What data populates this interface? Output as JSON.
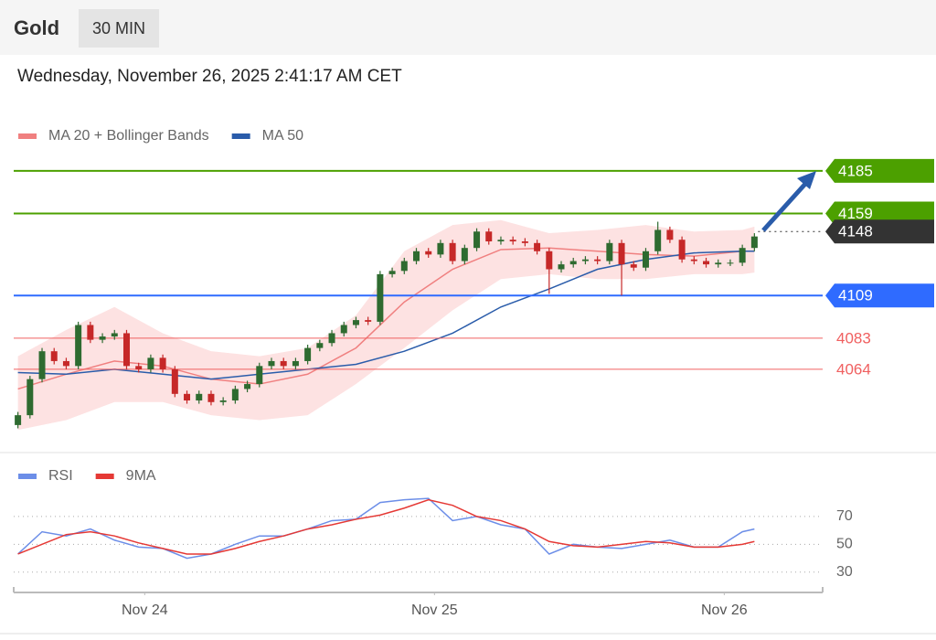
{
  "header": {
    "title": "Gold",
    "timeframe": "30 MIN",
    "timestamp": "Wednesday, November 26, 2025 2:41:17 AM CET"
  },
  "chart_data": [
    {
      "type": "candlestick",
      "x": [
        0,
        2,
        4,
        6,
        8,
        10,
        12,
        14,
        16,
        18,
        20,
        22,
        24,
        26,
        28,
        30,
        32,
        34,
        36,
        38,
        40,
        42,
        44,
        46,
        48,
        50,
        52,
        54,
        56,
        58,
        60,
        62,
        64,
        66,
        68,
        70,
        72,
        74,
        76,
        78,
        80,
        82,
        84,
        86,
        88,
        90,
        92,
        94,
        96,
        98,
        100,
        102,
        104,
        106,
        108,
        110,
        112,
        114,
        116,
        118,
        120,
        122
      ],
      "open": [
        4030,
        4036,
        4058,
        4075,
        4069,
        4066,
        4091,
        4082,
        4084,
        4086,
        4066,
        4064,
        4071,
        4064,
        4049,
        4045,
        4049,
        4044,
        4045,
        4052,
        4055,
        4066,
        4069,
        4066,
        4069,
        4077,
        4080,
        4086,
        4091,
        4094,
        4093,
        4122,
        4124,
        4130,
        4136,
        4134,
        4141,
        4130,
        4138,
        4148,
        4142,
        4143,
        4142,
        4141,
        4136,
        4125,
        4128,
        4130,
        4131,
        4130,
        4141,
        4128,
        4126,
        4136,
        4149,
        4143,
        4131,
        4130,
        4128,
        4129,
        4129,
        4138
      ],
      "high": [
        4038,
        4060,
        4077,
        4077,
        4071,
        4093,
        4093,
        4086,
        4088,
        4088,
        4068,
        4073,
        4073,
        4066,
        4051,
        4051,
        4051,
        4047,
        4054,
        4057,
        4068,
        4071,
        4071,
        4071,
        4079,
        4082,
        4088,
        4093,
        4096,
        4096,
        4124,
        4126,
        4132,
        4138,
        4138,
        4143,
        4143,
        4140,
        4150,
        4150,
        4145,
        4145,
        4144,
        4143,
        4138,
        4130,
        4132,
        4133,
        4133,
        4143,
        4143,
        4130,
        4138,
        4154,
        4151,
        4145,
        4133,
        4132,
        4131,
        4131,
        4140,
        4147
      ],
      "low": [
        4028,
        4034,
        4056,
        4067,
        4064,
        4064,
        4080,
        4080,
        4082,
        4064,
        4062,
        4062,
        4062,
        4047,
        4043,
        4043,
        4042,
        4042,
        4043,
        4050,
        4053,
        4064,
        4064,
        4064,
        4067,
        4075,
        4078,
        4084,
        4089,
        4091,
        4091,
        4120,
        4122,
        4128,
        4132,
        4132,
        4128,
        4128,
        4136,
        4140,
        4140,
        4140,
        4139,
        4134,
        4110,
        4123,
        4126,
        4128,
        4128,
        4128,
        4109,
        4124,
        4124,
        4134,
        4141,
        4129,
        4128,
        4126,
        4126,
        4127,
        4127,
        4136
      ],
      "close": [
        4036,
        4058,
        4075,
        4069,
        4066,
        4091,
        4082,
        4084,
        4086,
        4066,
        4064,
        4071,
        4064,
        4049,
        4045,
        4049,
        4044,
        4045,
        4052,
        4055,
        4066,
        4069,
        4066,
        4069,
        4077,
        4080,
        4086,
        4091,
        4094,
        4093,
        4122,
        4124,
        4130,
        4136,
        4134,
        4141,
        4130,
        4138,
        4148,
        4142,
        4143,
        4142,
        4141,
        4136,
        4125,
        4128,
        4130,
        4131,
        4130,
        4141,
        4128,
        4126,
        4136,
        4149,
        4143,
        4131,
        4130,
        4128,
        4129,
        4129,
        4138,
        4145
      ],
      "up_color": "#2e6b30",
      "down_color": "#c62828",
      "overlays": [
        {
          "name": "MA 20 + Bollinger Bands",
          "color": "#f08080",
          "band_color": "#fde2e2",
          "x": [
            0,
            8,
            16,
            24,
            32,
            40,
            48,
            56,
            64,
            72,
            80,
            88,
            96,
            104,
            112,
            120,
            122
          ],
          "values": [
            4052,
            4061,
            4069,
            4066,
            4058,
            4055,
            4061,
            4077,
            4105,
            4125,
            4137,
            4138,
            4136,
            4134,
            4133,
            4136,
            4136
          ],
          "upper": [
            4072,
            4088,
            4102,
            4086,
            4075,
            4072,
            4077,
            4097,
            4136,
            4152,
            4155,
            4147,
            4149,
            4152,
            4148,
            4149,
            4151
          ],
          "lower": [
            4027,
            4033,
            4044,
            4044,
            4036,
            4033,
            4036,
            4055,
            4077,
            4100,
            4119,
            4122,
            4119,
            4119,
            4122,
            4122,
            4123
          ]
        },
        {
          "name": "MA 50",
          "color": "#2a5caa",
          "x": [
            0,
            8,
            16,
            24,
            32,
            40,
            48,
            56,
            64,
            72,
            80,
            88,
            96,
            104,
            112,
            120,
            122
          ],
          "values": [
            4062,
            4061,
            4064,
            4061,
            4058,
            4061,
            4064,
            4067,
            4075,
            4086,
            4102,
            4113,
            4125,
            4131,
            4135,
            4136,
            4136
          ]
        }
      ],
      "levels": [
        {
          "value": 4185,
          "color": "#4ca000",
          "line": "solid",
          "style": "box"
        },
        {
          "value": 4159,
          "color": "#4ca000",
          "line": "solid",
          "style": "box"
        },
        {
          "value": 4148,
          "color": "#333333",
          "line": "dotted",
          "style": "box"
        },
        {
          "value": 4109,
          "color": "#2f6bff",
          "line": "solid",
          "style": "box"
        },
        {
          "value": 4083,
          "color": "#f06060",
          "line": "solid",
          "style": "text"
        },
        {
          "value": 4064,
          "color": "#f06060",
          "line": "solid",
          "style": "text"
        }
      ],
      "xlim": [
        -1,
        133
      ],
      "ylim": [
        4016,
        4200
      ]
    },
    {
      "type": "line",
      "x": [
        0,
        4,
        8,
        12,
        16,
        20,
        24,
        28,
        32,
        36,
        40,
        44,
        48,
        52,
        56,
        60,
        64,
        68,
        72,
        76,
        80,
        84,
        88,
        92,
        96,
        100,
        104,
        108,
        112,
        116,
        120,
        122
      ],
      "series": [
        {
          "name": "RSI",
          "color": "#6c8ee8",
          "values": [
            43,
            59,
            56,
            61,
            53,
            48,
            47,
            40,
            43,
            50,
            56,
            56,
            61,
            67,
            68,
            80,
            82,
            83,
            67,
            70,
            64,
            61,
            43,
            50,
            48,
            47,
            50,
            53,
            48,
            48,
            59,
            61
          ]
        },
        {
          "name": "9MA",
          "color": "#e53935",
          "values": [
            43,
            50,
            57,
            59,
            56,
            51,
            47,
            43,
            43,
            47,
            52,
            56,
            61,
            64,
            68,
            71,
            76,
            82,
            78,
            70,
            67,
            61,
            52,
            49,
            48,
            50,
            52,
            51,
            48,
            48,
            50,
            52
          ]
        }
      ],
      "xlim": [
        -1,
        133
      ],
      "ylim": [
        20,
        87
      ],
      "yticks": [
        30,
        50,
        70
      ],
      "grid": true,
      "xticks": [
        {
          "value": 21,
          "label": "Nov 24"
        },
        {
          "value": 69,
          "label": "Nov 25"
        },
        {
          "value": 117,
          "label": "Nov 26"
        }
      ]
    }
  ]
}
